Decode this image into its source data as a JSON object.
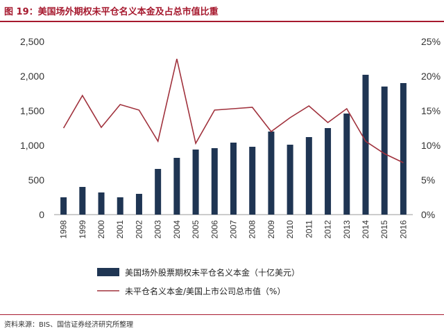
{
  "header": {
    "title": "图 19：美国场外期权未平仓名义本金及占总市值比重"
  },
  "footer": {
    "source": "资料来源：BIS、国信证券经济研究所整理"
  },
  "colors": {
    "bar": "#1f3553",
    "line": "#a0313c",
    "title": "#a6192e"
  },
  "chart_data": {
    "type": "bar",
    "title": "",
    "xlabel": "",
    "ylabel": "",
    "categories": [
      "1998",
      "1999",
      "2000",
      "2001",
      "2002",
      "2003",
      "2004",
      "2005",
      "2006",
      "2007",
      "2008",
      "2009",
      "2010",
      "2011",
      "2012",
      "2013",
      "2014",
      "2015",
      "2016"
    ],
    "ylim": [
      0,
      2500
    ],
    "y_ticks": [
      "0",
      "500",
      "1,000",
      "1,500",
      "2,000",
      "2,500"
    ],
    "y2lim": [
      0,
      25
    ],
    "y2_ticks": [
      "0%",
      "5%",
      "10%",
      "15%",
      "20%",
      "25%"
    ],
    "grid": false,
    "legend_position": "bottom",
    "series": [
      {
        "name": "美国场外股票期权未平仓名义本金（十亿美元）",
        "type": "bar",
        "axis": "left",
        "values": [
          250,
          400,
          320,
          250,
          300,
          660,
          820,
          940,
          960,
          1040,
          980,
          1200,
          1010,
          1120,
          1250,
          1460,
          2020,
          1850,
          1900
        ]
      },
      {
        "name": "未平仓名义本金/美国上市公司总市值（%）",
        "type": "line",
        "axis": "right",
        "values": [
          12.5,
          17.2,
          12.6,
          15.9,
          15.1,
          10.6,
          22.5,
          10.3,
          15.1,
          15.3,
          15.5,
          12.0,
          14.0,
          15.7,
          13.3,
          15.3,
          10.6,
          8.8,
          7.5
        ]
      }
    ]
  }
}
